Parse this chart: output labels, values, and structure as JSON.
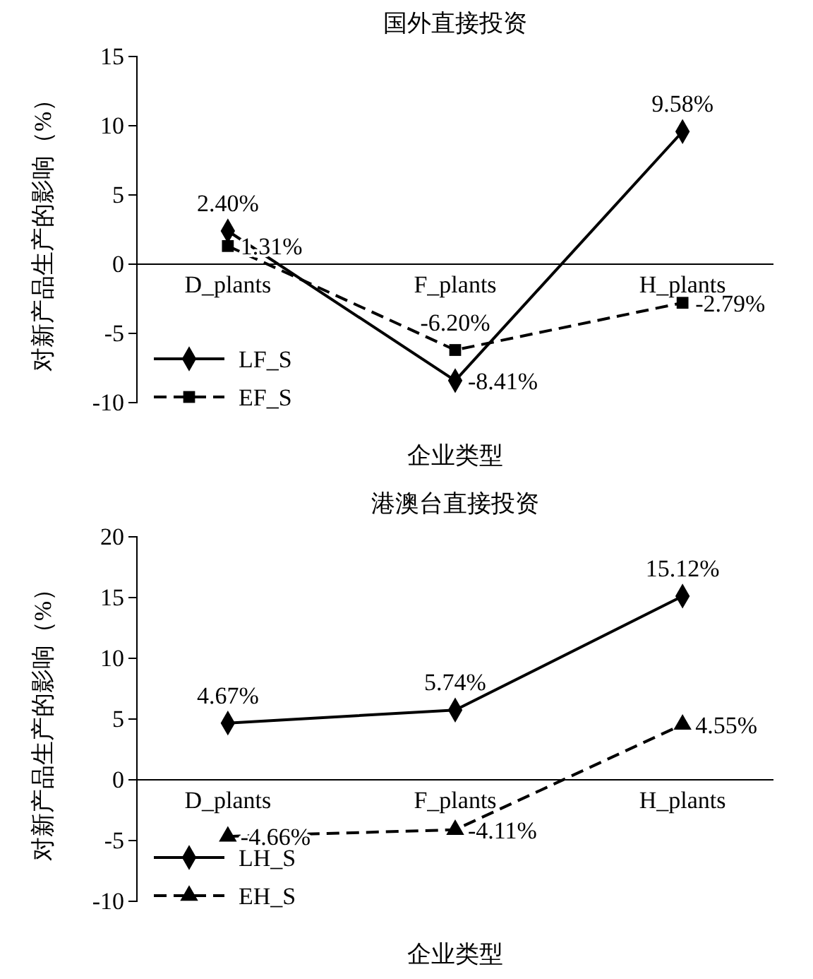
{
  "chart_data": [
    {
      "type": "line",
      "title": "国外直接投资",
      "xlabel": "企业类型",
      "ylabel": "对新产品生产的影响（%）",
      "categories": [
        "D_plants",
        "F_plants",
        "H_plants"
      ],
      "ylim": [
        -10,
        15
      ],
      "yticks": [
        -10,
        -5,
        0,
        5,
        10,
        15
      ],
      "grid": false,
      "legend": "bottom left",
      "series": [
        {
          "name": "LF_S",
          "color": "#000000",
          "marker": "diamond",
          "line_style": "solid",
          "values": [
            2.4,
            -8.41,
            9.58
          ],
          "value_labels": [
            "2.40%",
            "-8.41%",
            "9.58%"
          ]
        },
        {
          "name": "EF_S",
          "color": "#000000",
          "marker": "square",
          "line_style": "dashed",
          "values": [
            1.31,
            -6.2,
            -2.79
          ],
          "value_labels": [
            "1.31%",
            "-6.20%",
            "-2.79%"
          ]
        }
      ]
    },
    {
      "type": "line",
      "title": "港澳台直接投资",
      "xlabel": "企业类型",
      "ylabel": "对新产品生产的影响（%）",
      "categories": [
        "D_plants",
        "F_plants",
        "H_plants"
      ],
      "ylim": [
        -10,
        20
      ],
      "yticks": [
        -10,
        -5,
        0,
        5,
        10,
        15,
        20
      ],
      "grid": false,
      "legend": "bottom left",
      "series": [
        {
          "name": "LH_S",
          "color": "#000000",
          "marker": "diamond",
          "line_style": "solid",
          "values": [
            4.67,
            5.74,
            15.12
          ],
          "value_labels": [
            "4.67%",
            "5.74%",
            "15.12%"
          ]
        },
        {
          "name": "EH_S",
          "color": "#000000",
          "marker": "triangle",
          "line_style": "dashed",
          "values": [
            -4.66,
            -4.11,
            4.55
          ],
          "value_labels": [
            "-4.66%",
            "-4.11%",
            "4.55%"
          ]
        }
      ]
    }
  ]
}
